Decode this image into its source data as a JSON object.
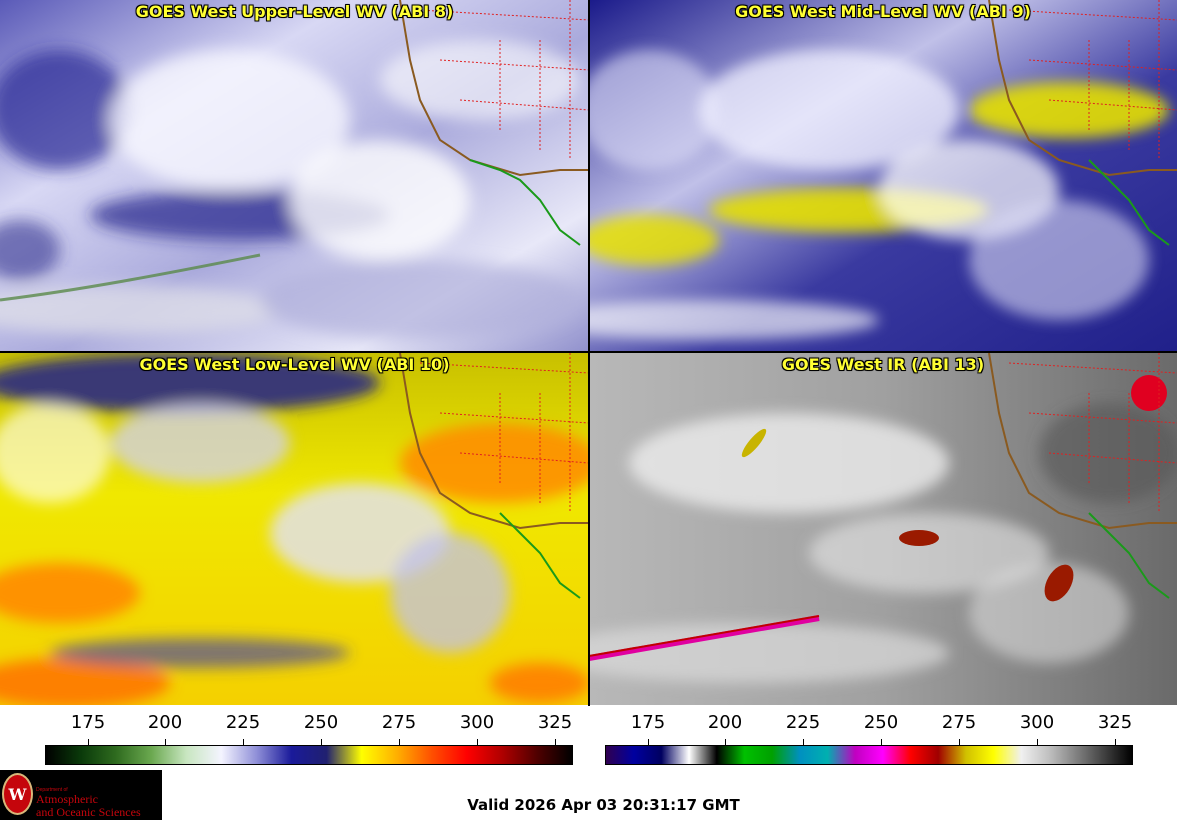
{
  "panels": [
    {
      "title": "GOES West Upper-Level WV (ABI 8)"
    },
    {
      "title": "GOES West Mid-Level WV (ABI 9)"
    },
    {
      "title": "GOES West Low-Level WV (ABI 10)"
    },
    {
      "title": "GOES West IR (ABI 13)"
    }
  ],
  "scales": {
    "wv": {
      "ticks": [
        "175",
        "200",
        "225",
        "250",
        "275",
        "300",
        "325"
      ]
    },
    "ir": {
      "ticks": [
        "175",
        "200",
        "225",
        "250",
        "275",
        "300",
        "325"
      ]
    }
  },
  "colors": {
    "title_text": "#ffff33",
    "wv_bar": [
      "#000000",
      "#0a3a0a",
      "#2f6b1f",
      "#6aa84f",
      "#c8e6c0",
      "#f4f4ff",
      "#9090d8",
      "#1a1a9a",
      "#202070",
      "#ffff00",
      "#ffb000",
      "#ff5000",
      "#ff0000",
      "#b00000",
      "#500000",
      "#000000"
    ],
    "ir_bar": [
      "#300050",
      "#0000a0",
      "#000060",
      "#ffffff",
      "#000000",
      "#00c000",
      "#00a000",
      "#0090c0",
      "#00b0b0",
      "#c000c0",
      "#ff00ff",
      "#ff0000",
      "#a00000",
      "#d0c000",
      "#ffff00",
      "#f0f0f0",
      "#c0c0c0",
      "#808080",
      "#404040",
      "#000000"
    ]
  },
  "logo": {
    "dept_line": "Department of",
    "name_line1": "Atmospheric",
    "name_line2": "and Oceanic Sciences",
    "seal_letter": "W"
  },
  "footer": {
    "valid_text": "Valid 2026 Apr 03 20:31:17 GMT"
  }
}
